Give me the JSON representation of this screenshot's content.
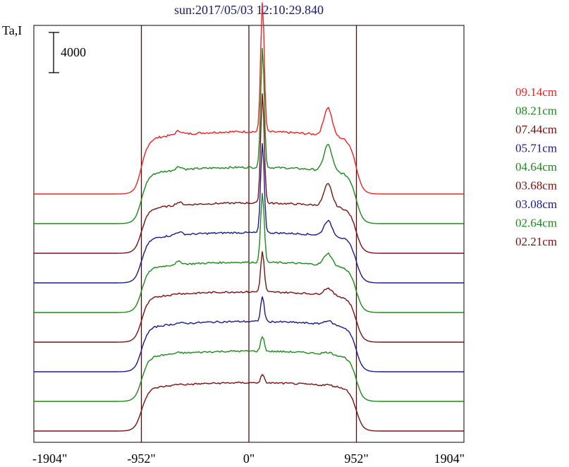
{
  "chart_data": {
    "type": "line",
    "title": "sun:2017/05/03 12:10:29.840",
    "ylabel": "Ta,I",
    "scale_bar_label": "4000",
    "scale_bar_value": 4000,
    "x_ticks": [
      "-1904\"",
      "-952\"",
      "0\"",
      "952\"",
      "1904\""
    ],
    "x_tick_values": [
      -1904,
      -952,
      0,
      952,
      1904
    ],
    "xlim": [
      -1904,
      1904
    ],
    "limb_markers": [
      -952,
      0,
      952
    ],
    "colors": {
      "red": "#ee2222",
      "green": "#1a8a1a",
      "brown": "#7a1010",
      "blue": "#1a1a8a",
      "axis": "#000000",
      "marker": "#4a0e0e",
      "title": "#1a1a6a"
    },
    "series": [
      {
        "name": "09.14cm",
        "color": "#ee2222",
        "peak": 13000,
        "plateau": 6200,
        "base": 0,
        "bump": 2800
      },
      {
        "name": "08.21cm",
        "color": "#1a8a1a",
        "peak": 12000,
        "plateau": 5600,
        "base": 0,
        "bump": 2600
      },
      {
        "name": "07.44cm",
        "color": "#7a1010",
        "peak": 11000,
        "plateau": 5000,
        "base": 0,
        "bump": 2200
      },
      {
        "name": "05.71cm",
        "color": "#1a1a8a",
        "peak": 9000,
        "plateau": 5000,
        "base": 0,
        "bump": 1500
      },
      {
        "name": "04.64cm",
        "color": "#1a8a1a",
        "peak": 7000,
        "plateau": 5000,
        "base": 0,
        "bump": 1200
      },
      {
        "name": "03.68cm",
        "color": "#7a1010",
        "peak": 4000,
        "plateau": 5000,
        "base": 0,
        "bump": 700
      },
      {
        "name": "03.08cm",
        "color": "#1a1a8a",
        "peak": 2500,
        "plateau": 5000,
        "base": 0,
        "bump": 400
      },
      {
        "name": "02.64cm",
        "color": "#1a8a1a",
        "peak": 1500,
        "plateau": 5000,
        "base": 0,
        "bump": 200
      },
      {
        "name": "02.21cm",
        "color": "#7a1010",
        "peak": 800,
        "plateau": 4800,
        "base": 0,
        "bump": 100
      }
    ]
  }
}
